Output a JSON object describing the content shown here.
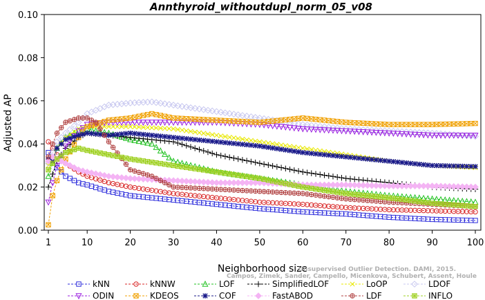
{
  "chart_data": {
    "type": "line",
    "title": "Annthyroid_withoutdupl_norm_05_v08",
    "xlabel": "Neighborhood size",
    "ylabel": "Adjusted AP",
    "xlim": [
      1,
      100
    ],
    "ylim": [
      0.0,
      0.1
    ],
    "xticks": [
      1,
      10,
      20,
      30,
      40,
      50,
      60,
      70,
      80,
      90,
      100
    ],
    "yticks": [
      "0.00",
      "0.02",
      "0.04",
      "0.06",
      "0.08",
      "0.10"
    ],
    "legend_position": "bottom",
    "series": [
      {
        "name": "kNN",
        "color": "#2a2adb",
        "marker": "square",
        "points": [
          [
            1,
            0.036
          ],
          [
            2,
            0.033
          ],
          [
            3,
            0.029
          ],
          [
            5,
            0.025
          ],
          [
            8,
            0.022
          ],
          [
            10,
            0.021
          ],
          [
            15,
            0.018
          ],
          [
            20,
            0.016
          ],
          [
            30,
            0.014
          ],
          [
            40,
            0.012
          ],
          [
            50,
            0.01
          ],
          [
            60,
            0.0085
          ],
          [
            70,
            0.0075
          ],
          [
            80,
            0.006
          ],
          [
            90,
            0.005
          ],
          [
            100,
            0.0045
          ]
        ]
      },
      {
        "name": "kNNW",
        "color": "#d82424",
        "marker": "circle",
        "points": [
          [
            1,
            0.041
          ],
          [
            2,
            0.038
          ],
          [
            3,
            0.035
          ],
          [
            5,
            0.031
          ],
          [
            8,
            0.027
          ],
          [
            10,
            0.025
          ],
          [
            15,
            0.022
          ],
          [
            20,
            0.02
          ],
          [
            30,
            0.017
          ],
          [
            40,
            0.015
          ],
          [
            50,
            0.013
          ],
          [
            60,
            0.012
          ],
          [
            70,
            0.0105
          ],
          [
            80,
            0.0095
          ],
          [
            90,
            0.009
          ],
          [
            100,
            0.0085
          ]
        ]
      },
      {
        "name": "LOF",
        "color": "#22c222",
        "marker": "triangle-up",
        "points": [
          [
            1,
            0.025
          ],
          [
            2,
            0.031
          ],
          [
            3,
            0.038
          ],
          [
            5,
            0.043
          ],
          [
            8,
            0.046
          ],
          [
            10,
            0.047
          ],
          [
            12,
            0.046
          ],
          [
            15,
            0.045
          ],
          [
            20,
            0.042
          ],
          [
            25,
            0.04
          ],
          [
            30,
            0.032
          ],
          [
            40,
            0.027
          ],
          [
            50,
            0.024
          ],
          [
            60,
            0.021
          ],
          [
            70,
            0.018
          ],
          [
            80,
            0.016
          ],
          [
            90,
            0.0145
          ],
          [
            100,
            0.013
          ]
        ]
      },
      {
        "name": "SimplifiedLOF",
        "color": "#000000",
        "marker": "plus",
        "points": [
          [
            1,
            0.02
          ],
          [
            2,
            0.026
          ],
          [
            3,
            0.032
          ],
          [
            5,
            0.038
          ],
          [
            8,
            0.043
          ],
          [
            10,
            0.045
          ],
          [
            15,
            0.044
          ],
          [
            20,
            0.043
          ],
          [
            30,
            0.041
          ],
          [
            35,
            0.038
          ],
          [
            40,
            0.035
          ],
          [
            50,
            0.031
          ],
          [
            60,
            0.027
          ],
          [
            70,
            0.024
          ],
          [
            80,
            0.022
          ],
          [
            90,
            0.02
          ],
          [
            100,
            0.019
          ]
        ]
      },
      {
        "name": "LoOP",
        "color": "#e8e800",
        "marker": "x",
        "points": [
          [
            1,
            0.03
          ],
          [
            2,
            0.034
          ],
          [
            3,
            0.038
          ],
          [
            5,
            0.043
          ],
          [
            8,
            0.047
          ],
          [
            10,
            0.048
          ],
          [
            15,
            0.048
          ],
          [
            20,
            0.048
          ],
          [
            30,
            0.047
          ],
          [
            40,
            0.044
          ],
          [
            50,
            0.041
          ],
          [
            60,
            0.038
          ],
          [
            70,
            0.035
          ],
          [
            80,
            0.032
          ],
          [
            90,
            0.03
          ],
          [
            100,
            0.029
          ]
        ]
      },
      {
        "name": "LDOF",
        "color": "#c8c8f0",
        "marker": "diamond",
        "points": [
          [
            1,
            0.031
          ],
          [
            2,
            0.036
          ],
          [
            3,
            0.041
          ],
          [
            5,
            0.045
          ],
          [
            8,
            0.05
          ],
          [
            10,
            0.054
          ],
          [
            15,
            0.058
          ],
          [
            20,
            0.059
          ],
          [
            25,
            0.0595
          ],
          [
            30,
            0.058
          ],
          [
            40,
            0.055
          ],
          [
            50,
            0.052
          ],
          [
            60,
            0.049
          ],
          [
            70,
            0.047
          ],
          [
            80,
            0.046
          ],
          [
            90,
            0.045
          ],
          [
            100,
            0.0435
          ]
        ]
      },
      {
        "name": "ODIN",
        "color": "#9a1ee0",
        "marker": "triangle-down",
        "points": [
          [
            1,
            0.013
          ],
          [
            2,
            0.022
          ],
          [
            3,
            0.03
          ],
          [
            5,
            0.039
          ],
          [
            8,
            0.046
          ],
          [
            10,
            0.049
          ],
          [
            15,
            0.05
          ],
          [
            20,
            0.05
          ],
          [
            30,
            0.05
          ],
          [
            40,
            0.05
          ],
          [
            50,
            0.049
          ],
          [
            60,
            0.047
          ],
          [
            70,
            0.046
          ],
          [
            80,
            0.045
          ],
          [
            90,
            0.044
          ],
          [
            100,
            0.044
          ]
        ]
      },
      {
        "name": "KDEOS",
        "color": "#f0a000",
        "marker": "square-x",
        "points": [
          [
            1,
            0.0025
          ],
          [
            2,
            0.016
          ],
          [
            3,
            0.023
          ],
          [
            5,
            0.033
          ],
          [
            8,
            0.043
          ],
          [
            10,
            0.048
          ],
          [
            15,
            0.051
          ],
          [
            20,
            0.052
          ],
          [
            25,
            0.054
          ],
          [
            30,
            0.052
          ],
          [
            40,
            0.051
          ],
          [
            50,
            0.05
          ],
          [
            60,
            0.052
          ],
          [
            70,
            0.05
          ],
          [
            80,
            0.049
          ],
          [
            90,
            0.049
          ],
          [
            100,
            0.0495
          ]
        ]
      },
      {
        "name": "COF",
        "color": "#1a1a8a",
        "marker": "star",
        "points": [
          [
            1,
            0.033
          ],
          [
            2,
            0.032
          ],
          [
            3,
            0.038
          ],
          [
            5,
            0.042
          ],
          [
            8,
            0.044
          ],
          [
            10,
            0.045
          ],
          [
            15,
            0.044
          ],
          [
            20,
            0.045
          ],
          [
            25,
            0.044
          ],
          [
            30,
            0.043
          ],
          [
            40,
            0.041
          ],
          [
            50,
            0.039
          ],
          [
            60,
            0.036
          ],
          [
            70,
            0.034
          ],
          [
            80,
            0.032
          ],
          [
            90,
            0.03
          ],
          [
            100,
            0.0295
          ]
        ]
      },
      {
        "name": "FastABOD",
        "color": "#f4b4f4",
        "marker": "diamond-filled",
        "points": [
          [
            1,
            0.032
          ],
          [
            2,
            0.034
          ],
          [
            3,
            0.033
          ],
          [
            5,
            0.031
          ],
          [
            8,
            0.028
          ],
          [
            10,
            0.027
          ],
          [
            15,
            0.025
          ],
          [
            20,
            0.024
          ],
          [
            30,
            0.023
          ],
          [
            40,
            0.022
          ],
          [
            50,
            0.022
          ],
          [
            60,
            0.021
          ],
          [
            70,
            0.021
          ],
          [
            80,
            0.0205
          ],
          [
            90,
            0.0205
          ],
          [
            100,
            0.02
          ]
        ]
      },
      {
        "name": "LDF",
        "color": "#b04040",
        "marker": "circle-plus",
        "points": [
          [
            1,
            0.034
          ],
          [
            2,
            0.04
          ],
          [
            3,
            0.045
          ],
          [
            5,
            0.05
          ],
          [
            8,
            0.052
          ],
          [
            10,
            0.052
          ],
          [
            12,
            0.05
          ],
          [
            15,
            0.041
          ],
          [
            20,
            0.028
          ],
          [
            25,
            0.025
          ],
          [
            30,
            0.02
          ],
          [
            40,
            0.019
          ],
          [
            50,
            0.018
          ],
          [
            60,
            0.017
          ],
          [
            70,
            0.0145
          ],
          [
            80,
            0.013
          ],
          [
            90,
            0.012
          ],
          [
            100,
            0.011
          ]
        ]
      },
      {
        "name": "INFLO",
        "color": "#9ed020",
        "marker": "square-star",
        "points": [
          [
            1,
            0.028
          ],
          [
            2,
            0.031
          ],
          [
            3,
            0.033
          ],
          [
            5,
            0.036
          ],
          [
            8,
            0.038
          ],
          [
            10,
            0.037
          ],
          [
            15,
            0.035
          ],
          [
            20,
            0.033
          ],
          [
            30,
            0.03
          ],
          [
            40,
            0.027
          ],
          [
            50,
            0.024
          ],
          [
            60,
            0.02
          ],
          [
            70,
            0.017
          ],
          [
            80,
            0.015
          ],
          [
            90,
            0.0125
          ],
          [
            100,
            0.011
          ]
        ]
      }
    ]
  },
  "watermark_lines": [
    "Unsupervised Outlier Detection. DAMI, 2015.",
    "Campos, Zimek, Sander, Campello, Micenkova, Schubert, Assent, Houle"
  ]
}
